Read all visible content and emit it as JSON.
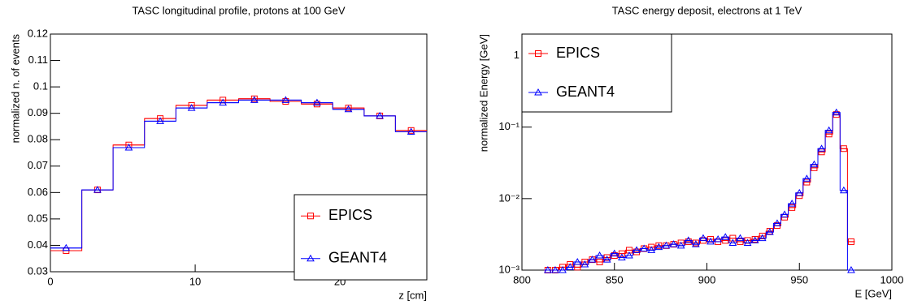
{
  "chart_data": [
    {
      "type": "histogram",
      "title": "TASC longitudinal profile, protons at 100 GeV",
      "x_label": "z [cm]",
      "y_label": "normalized n. of events",
      "bins": [
        0,
        2.17,
        4.33,
        6.5,
        8.67,
        10.83,
        13,
        15.17,
        17.33,
        19.5,
        21.67,
        23.83,
        26
      ],
      "series": [
        {
          "name": "EPICS",
          "color": "#ff0000",
          "marker": "square",
          "values": [
            0.038,
            0.061,
            0.078,
            0.088,
            0.093,
            0.095,
            0.0955,
            0.0945,
            0.0935,
            0.092,
            0.089,
            0.0835
          ]
        },
        {
          "name": "GEANT4",
          "color": "#0000ff",
          "marker": "triangle",
          "values": [
            0.039,
            0.061,
            0.077,
            0.087,
            0.092,
            0.094,
            0.095,
            0.095,
            0.094,
            0.0915,
            0.089,
            0.083
          ]
        }
      ],
      "xlim": [
        0,
        26
      ],
      "xticks": [
        0,
        10,
        20
      ],
      "ylim": [
        0.03,
        0.12
      ],
      "yticks": [
        0.03,
        0.04,
        0.05,
        0.06,
        0.07,
        0.08,
        0.09,
        0.1,
        0.11,
        0.12
      ],
      "log_y": false,
      "legend": "lower right"
    },
    {
      "type": "histogram",
      "title": "TASC energy deposit, electrons at 1 TeV",
      "x_label": "E [GeV]",
      "y_label": "normalized Energy [GeV]",
      "bins": [
        812,
        816,
        820,
        824,
        828,
        832,
        836,
        840,
        844,
        848,
        852,
        856,
        860,
        864,
        868,
        872,
        876,
        880,
        884,
        888,
        892,
        896,
        900,
        904,
        908,
        912,
        916,
        920,
        924,
        928,
        932,
        936,
        940,
        944,
        948,
        952,
        956,
        960,
        964,
        968,
        972,
        976,
        980
      ],
      "series": [
        {
          "name": "EPICS",
          "color": "#ff0000",
          "marker": "square",
          "values": [
            0.001,
            0.001,
            0.0011,
            0.0012,
            0.0011,
            0.0013,
            0.0014,
            0.0013,
            0.0015,
            0.0016,
            0.0017,
            0.0019,
            0.0018,
            0.002,
            0.0021,
            0.0022,
            0.0022,
            0.0023,
            0.0024,
            0.0025,
            0.0024,
            0.0026,
            0.0027,
            0.0025,
            0.0026,
            0.0028,
            0.0025,
            0.0026,
            0.0027,
            0.003,
            0.0035,
            0.0042,
            0.0055,
            0.0075,
            0.011,
            0.017,
            0.027,
            0.045,
            0.08,
            0.15,
            0.05,
            0.0025
          ]
        },
        {
          "name": "GEANT4",
          "color": "#0000ff",
          "marker": "triangle",
          "values": [
            0.001,
            0.001,
            0.001,
            0.0011,
            0.0013,
            0.0012,
            0.0014,
            0.0016,
            0.0014,
            0.0017,
            0.0015,
            0.0016,
            0.0019,
            0.002,
            0.0019,
            0.0021,
            0.0022,
            0.0023,
            0.0022,
            0.0026,
            0.0023,
            0.0028,
            0.0025,
            0.0027,
            0.0029,
            0.0024,
            0.0028,
            0.0024,
            0.0026,
            0.0028,
            0.0034,
            0.0045,
            0.006,
            0.0085,
            0.012,
            0.019,
            0.03,
            0.05,
            0.09,
            0.16,
            0.013,
            0.001
          ]
        }
      ],
      "xlim": [
        800,
        1000
      ],
      "xticks": [
        800,
        850,
        900,
        950,
        1000
      ],
      "ylim": [
        0.001,
        2
      ],
      "yticks": [
        {
          "value": 0.001,
          "label": "10⁻³"
        },
        {
          "value": 0.01,
          "label": "10⁻²"
        },
        {
          "value": 0.1,
          "label": "10⁻¹"
        },
        1
      ],
      "log_y": true,
      "legend": "upper left"
    }
  ]
}
